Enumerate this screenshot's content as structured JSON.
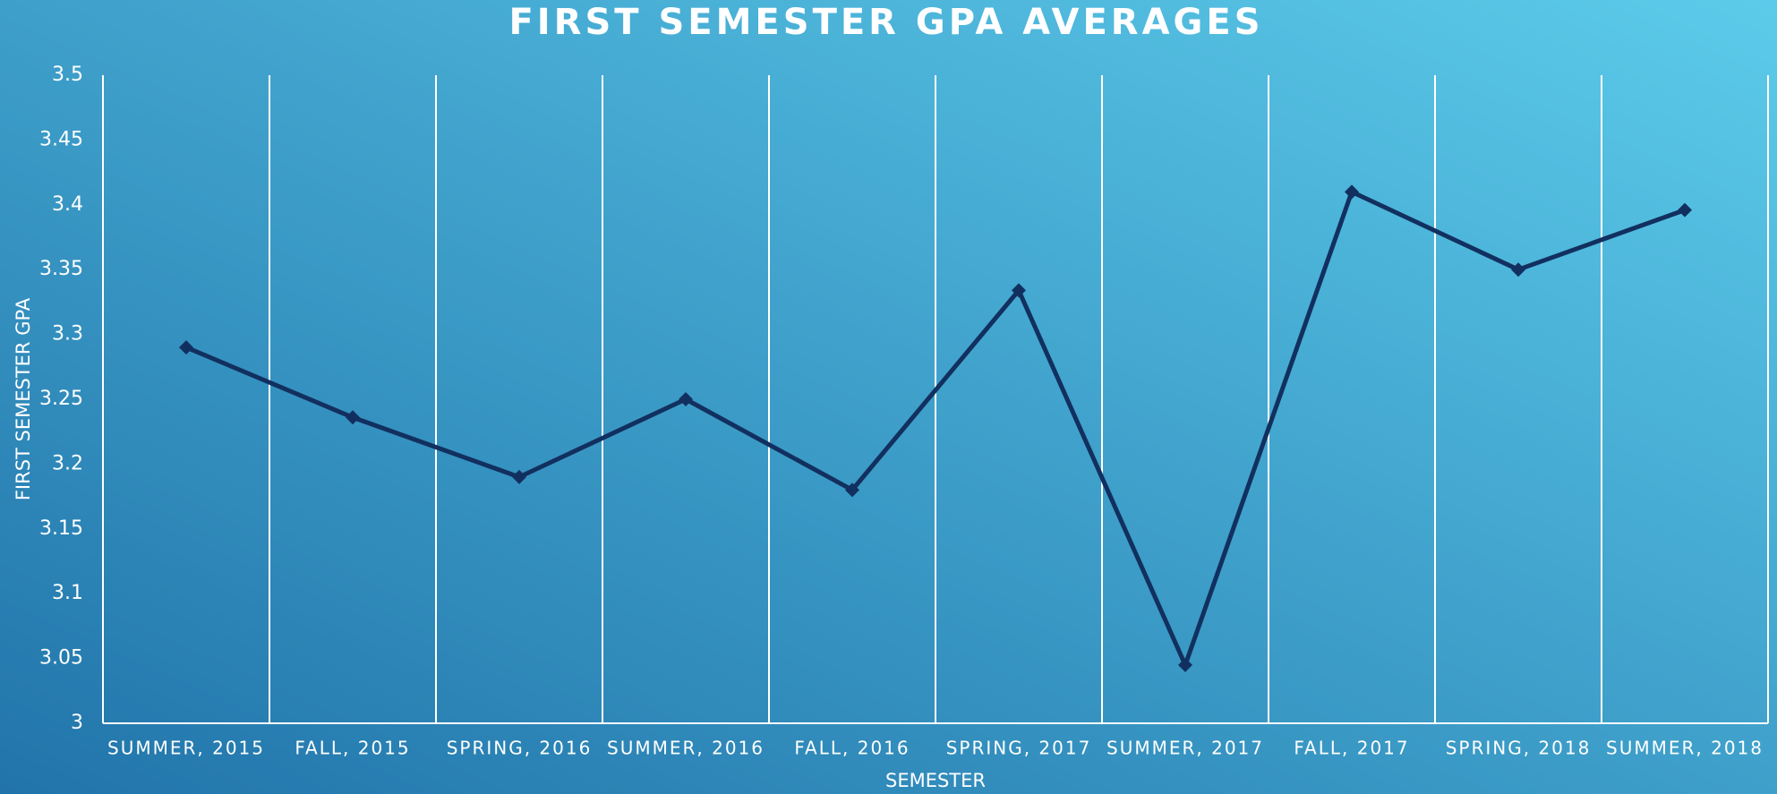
{
  "chart_data": {
    "type": "line",
    "title": "FIRST SEMESTER GPA AVERAGES",
    "x_label": "SEMESTER",
    "y_label": "FIRST SEMESTER GPA",
    "categories": [
      "SUMMER, 2015",
      "FALL, 2015",
      "SPRING, 2016",
      "SUMMER, 2016",
      "FALL, 2016",
      "SPRING, 2017",
      "SUMMER, 2017",
      "FALL, 2017",
      "SPRING, 2018",
      "SUMMER, 2018"
    ],
    "values": [
      3.29,
      3.236,
      3.19,
      3.25,
      3.18,
      3.334,
      3.045,
      3.41,
      3.35,
      3.396
    ],
    "color": "#12305f",
    "ylim": [
      3,
      3.5
    ],
    "yticks": [
      3,
      3.05,
      3.1,
      3.15,
      3.2,
      3.25,
      3.3,
      3.35,
      3.4,
      3.45,
      3.5
    ],
    "grid": false
  }
}
